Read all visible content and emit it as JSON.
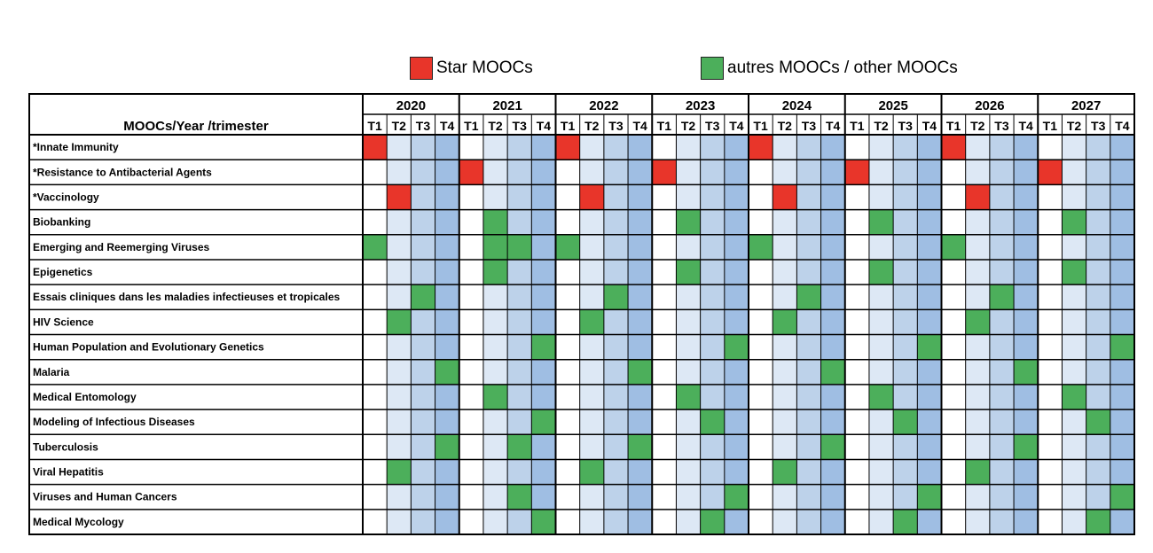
{
  "chart_data": {
    "type": "table",
    "title": "",
    "row_header": "MOOCs/Year /trimester",
    "years": [
      "2020",
      "2021",
      "2022",
      "2023",
      "2024",
      "2025",
      "2026",
      "2027"
    ],
    "trimesters": [
      "T1",
      "T2",
      "T3",
      "T4"
    ],
    "legend": [
      {
        "key": "star",
        "label": "Star MOOCs",
        "color": "#e8352a"
      },
      {
        "key": "other",
        "label": "autres MOOCs / other MOOCs",
        "color": "#4caf5b"
      }
    ],
    "column_shades": [
      "#ffffff",
      "#dde8f5",
      "#bdd2ea",
      "#9fbee3"
    ],
    "courses": [
      {
        "name": "*Innate Immunity",
        "kind": "star",
        "cells": [
          [
            0,
            0
          ],
          [
            2,
            0
          ],
          [
            4,
            0
          ],
          [
            6,
            0
          ]
        ]
      },
      {
        "name": "*Resistance to Antibacterial Agents",
        "kind": "star",
        "cells": [
          [
            1,
            0
          ],
          [
            3,
            0
          ],
          [
            5,
            0
          ],
          [
            7,
            0
          ]
        ]
      },
      {
        "name": "*Vaccinology",
        "kind": "star",
        "cells": [
          [
            0,
            1
          ],
          [
            2,
            1
          ],
          [
            4,
            1
          ],
          [
            6,
            1
          ]
        ]
      },
      {
        "name": "Biobanking",
        "kind": "other",
        "cells": [
          [
            1,
            1
          ],
          [
            3,
            1
          ],
          [
            5,
            1
          ],
          [
            7,
            1
          ]
        ]
      },
      {
        "name": "Emerging and Reemerging Viruses",
        "kind": "other",
        "cells": [
          [
            0,
            0
          ],
          [
            1,
            1
          ],
          [
            1,
            2
          ],
          [
            2,
            0
          ],
          [
            4,
            0
          ],
          [
            6,
            0
          ]
        ]
      },
      {
        "name": "Epigenetics",
        "kind": "other",
        "cells": [
          [
            1,
            1
          ],
          [
            3,
            1
          ],
          [
            5,
            1
          ],
          [
            7,
            1
          ]
        ]
      },
      {
        "name": "Essais cliniques dans les maladies infectieuses et tropicales",
        "kind": "other",
        "cells": [
          [
            0,
            2
          ],
          [
            2,
            2
          ],
          [
            4,
            2
          ],
          [
            6,
            2
          ]
        ]
      },
      {
        "name": "HIV Science",
        "kind": "other",
        "cells": [
          [
            0,
            1
          ],
          [
            2,
            1
          ],
          [
            4,
            1
          ],
          [
            6,
            1
          ]
        ]
      },
      {
        "name": "Human Population and Evolutionary Genetics",
        "kind": "other",
        "cells": [
          [
            1,
            3
          ],
          [
            3,
            3
          ],
          [
            5,
            3
          ],
          [
            7,
            3
          ]
        ]
      },
      {
        "name": "Malaria",
        "kind": "other",
        "cells": [
          [
            0,
            3
          ],
          [
            2,
            3
          ],
          [
            4,
            3
          ],
          [
            6,
            3
          ]
        ]
      },
      {
        "name": "Medical Entomology",
        "kind": "other",
        "cells": [
          [
            1,
            1
          ],
          [
            3,
            1
          ],
          [
            5,
            1
          ],
          [
            7,
            1
          ]
        ]
      },
      {
        "name": "Modeling of Infectious Diseases",
        "kind": "other",
        "cells": [
          [
            1,
            3
          ],
          [
            3,
            2
          ],
          [
            5,
            2
          ],
          [
            7,
            2
          ]
        ]
      },
      {
        "name": "Tuberculosis",
        "kind": "other",
        "cells": [
          [
            0,
            3
          ],
          [
            1,
            2
          ],
          [
            2,
            3
          ],
          [
            4,
            3
          ],
          [
            6,
            3
          ]
        ]
      },
      {
        "name": "Viral Hepatitis",
        "kind": "other",
        "cells": [
          [
            0,
            1
          ],
          [
            2,
            1
          ],
          [
            4,
            1
          ],
          [
            6,
            1
          ]
        ]
      },
      {
        "name": "Viruses and Human Cancers",
        "kind": "other",
        "cells": [
          [
            1,
            2
          ],
          [
            3,
            3
          ],
          [
            5,
            3
          ],
          [
            7,
            3
          ]
        ]
      },
      {
        "name": "Medical Mycology",
        "kind": "other",
        "cells": [
          [
            1,
            3
          ],
          [
            3,
            2
          ],
          [
            5,
            2
          ],
          [
            7,
            2
          ]
        ]
      }
    ]
  }
}
